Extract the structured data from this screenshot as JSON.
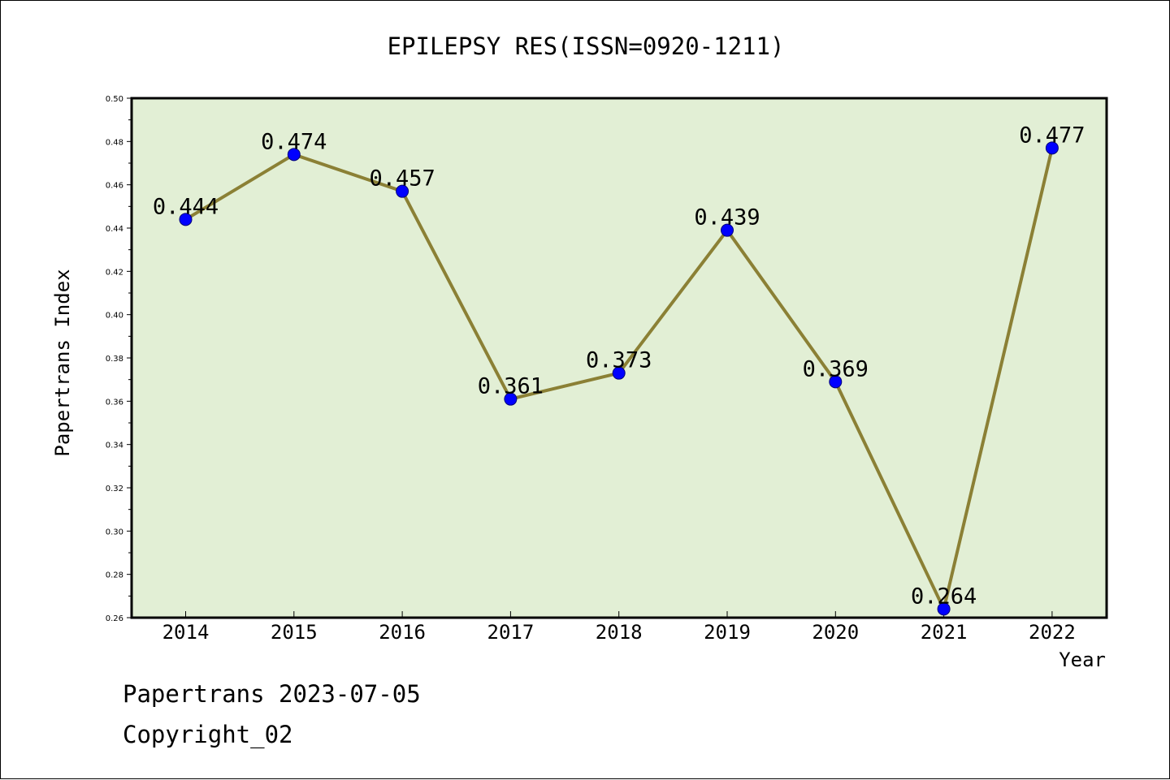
{
  "chart_data": {
    "type": "line",
    "title": "EPILEPSY RES(ISSN=0920-1211)",
    "xlabel": "Year",
    "ylabel": "Papertrans Index",
    "categories": [
      "2014",
      "2015",
      "2016",
      "2017",
      "2018",
      "2019",
      "2020",
      "2021",
      "2022"
    ],
    "series": [
      {
        "values": [
          0.444,
          0.474,
          0.457,
          0.361,
          0.373,
          0.439,
          0.369,
          0.264,
          0.477
        ]
      }
    ],
    "data_labels": [
      "0.444",
      "0.474",
      "0.457",
      "0.361",
      "0.373",
      "0.439",
      "0.369",
      "0.264",
      "0.477"
    ],
    "ylim": [
      0.26,
      0.5
    ],
    "yticks": [
      "0.26",
      "0.28",
      "0.30",
      "0.32",
      "0.34",
      "0.36",
      "0.38",
      "0.40",
      "0.42",
      "0.44",
      "0.46",
      "0.48",
      "0.50"
    ],
    "grid": false,
    "legend": "none"
  },
  "footer": {
    "line1": "Papertrans 2023-07-05",
    "line2": "Copyright_02"
  },
  "colors": {
    "plot_background": "#e2efd5",
    "line": "#8b8035",
    "marker": "#0000ff"
  }
}
